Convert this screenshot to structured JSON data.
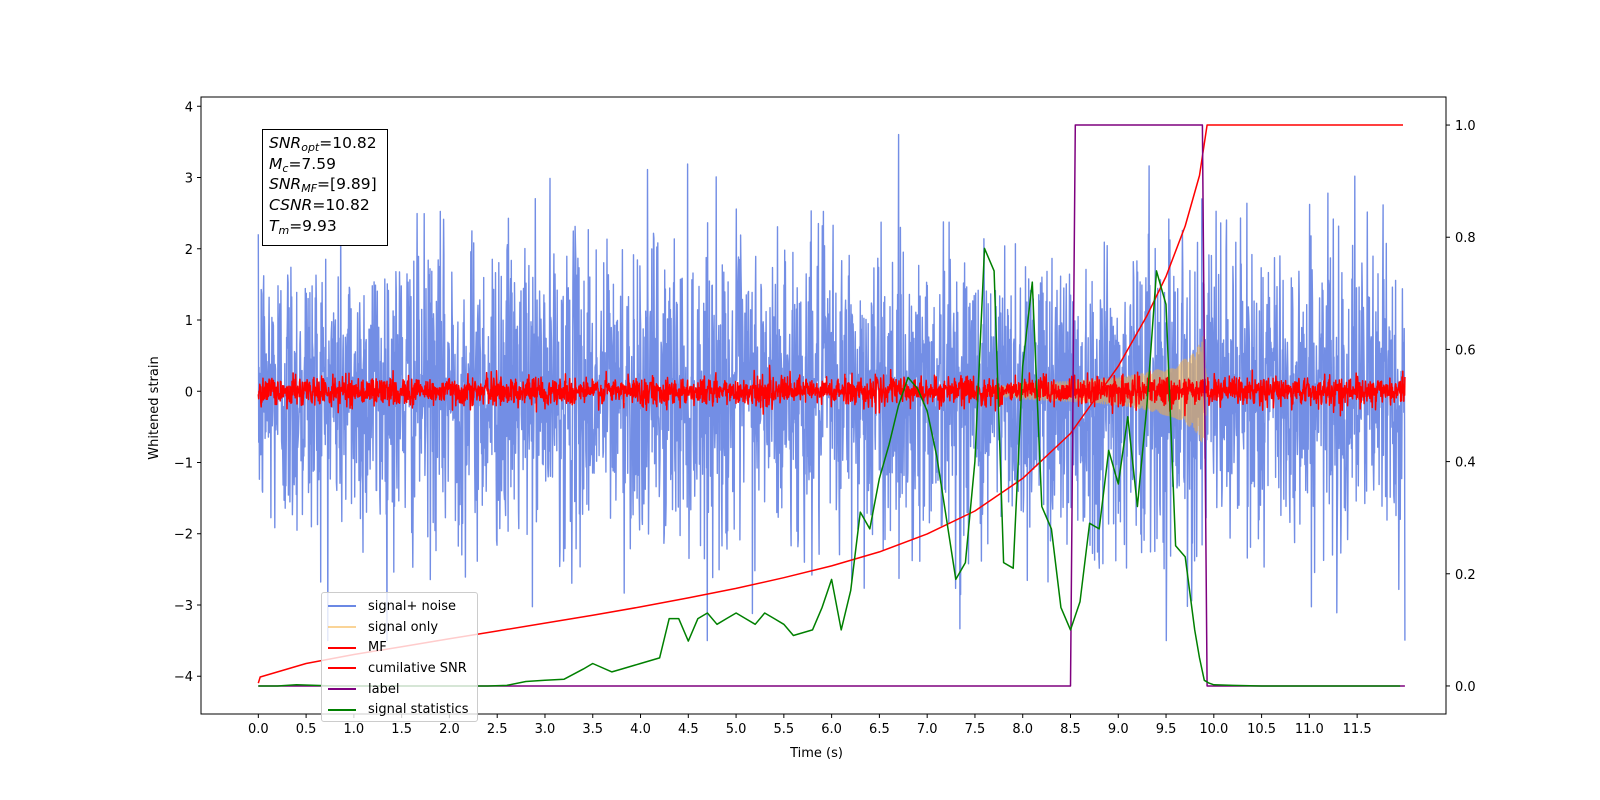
{
  "chart_data": {
    "type": "line",
    "title": "",
    "xlabel": "Time (s)",
    "ylabel": "Whitened strain",
    "y2label": "",
    "xlim": [
      -0.6,
      12.43
    ],
    "ylim": [
      -4.53,
      4.13
    ],
    "y2lim": [
      -0.05,
      1.05
    ],
    "xticks": [
      "0.0",
      "0.5",
      "1.0",
      "1.5",
      "2.0",
      "2.5",
      "3.0",
      "3.5",
      "4.0",
      "4.5",
      "5.0",
      "5.5",
      "6.0",
      "6.5",
      "7.0",
      "7.5",
      "8.0",
      "8.5",
      "9.0",
      "9.5",
      "10.0",
      "10.5",
      "11.0",
      "11.5"
    ],
    "yticks": [
      "4",
      "3",
      "2",
      "1",
      "0",
      "−1",
      "−2",
      "−3",
      "−4"
    ],
    "y2ticks": [
      "1.0",
      "0.8",
      "0.6",
      "0.4",
      "0.2",
      "0.0"
    ],
    "grid": false,
    "legend_position": "lower-left",
    "annotation": {
      "lines": [
        {
          "var": "SNR",
          "sub": "opt",
          "value": "=10.82"
        },
        {
          "var": "M",
          "sub": "c",
          "value": "=7.59"
        },
        {
          "var": "SNR",
          "sub": "MF",
          "value": "=[9.89]"
        },
        {
          "var": "CSNR",
          "sub": "",
          "value": "=10.82"
        },
        {
          "var": "T",
          "sub": "m",
          "value": "=9.93"
        }
      ]
    },
    "series": [
      {
        "name": "signal+ noise",
        "color": "#6b88e4",
        "axis": "left",
        "kind": "noise",
        "note_stats": {
          "mean": 0.0,
          "std": 1.0,
          "x_range": [
            0.0,
            12.0
          ]
        }
      },
      {
        "name": "signal only",
        "color": "#f5b042",
        "axis": "left",
        "kind": "chirp",
        "envelope": {
          "x": [
            7.6,
            8.0,
            8.5,
            9.0,
            9.3,
            9.6,
            9.8,
            9.9,
            9.93
          ],
          "y": [
            0.05,
            0.12,
            0.15,
            0.2,
            0.27,
            0.38,
            0.55,
            0.8,
            0.0
          ]
        }
      },
      {
        "name": "MF",
        "color": "#ff0000",
        "axis": "left",
        "kind": "noise",
        "note_stats": {
          "mean": 0.0,
          "std": 0.1,
          "x_range": [
            0.0,
            12.0
          ]
        }
      },
      {
        "name": "cumilative SNR",
        "color": "#ff0000",
        "axis": "right",
        "x": [
          0.0,
          0.02,
          0.5,
          1.0,
          1.5,
          2.0,
          2.5,
          3.0,
          3.5,
          4.0,
          4.5,
          5.0,
          5.5,
          6.0,
          6.5,
          7.0,
          7.5,
          8.0,
          8.5,
          9.0,
          9.3,
          9.5,
          9.7,
          9.85,
          9.93,
          9.96,
          10.5,
          11.0,
          11.5,
          11.98
        ],
        "y": [
          0.005,
          0.016,
          0.04,
          0.056,
          0.07,
          0.084,
          0.098,
          0.112,
          0.126,
          0.141,
          0.157,
          0.174,
          0.193,
          0.214,
          0.239,
          0.271,
          0.312,
          0.37,
          0.45,
          0.57,
          0.66,
          0.73,
          0.82,
          0.91,
          1.0,
          1.0,
          1.0,
          1.0,
          1.0,
          1.0
        ]
      },
      {
        "name": "label",
        "color": "#7f007f",
        "axis": "right",
        "x": [
          0.0,
          8.5,
          8.55,
          9.88,
          9.93,
          12.0
        ],
        "y": [
          0.0,
          0.0,
          1.0,
          1.0,
          0.0,
          0.0
        ]
      },
      {
        "name": "signal statistics",
        "color": "#008000",
        "axis": "right",
        "x": [
          0.0,
          0.2,
          0.4,
          0.6,
          0.8,
          1.0,
          1.2,
          1.4,
          1.6,
          1.8,
          2.0,
          2.2,
          2.4,
          2.6,
          2.8,
          3.0,
          3.2,
          3.4,
          3.5,
          3.7,
          3.8,
          4.0,
          4.2,
          4.3,
          4.4,
          4.5,
          4.6,
          4.7,
          4.8,
          4.9,
          5.0,
          5.1,
          5.2,
          5.3,
          5.4,
          5.5,
          5.6,
          5.8,
          5.9,
          6.0,
          6.1,
          6.2,
          6.3,
          6.4,
          6.5,
          6.6,
          6.7,
          6.8,
          6.9,
          7.0,
          7.1,
          7.2,
          7.3,
          7.4,
          7.5,
          7.6,
          7.7,
          7.8,
          7.9,
          8.0,
          8.1,
          8.2,
          8.3,
          8.4,
          8.5,
          8.6,
          8.7,
          8.8,
          8.9,
          9.0,
          9.1,
          9.2,
          9.3,
          9.4,
          9.5,
          9.6,
          9.7,
          9.8,
          9.85,
          9.9,
          9.95,
          10.0,
          10.2,
          10.5,
          11.0,
          11.5,
          11.95
        ],
        "y": [
          0.0,
          0.0,
          0.002,
          0.001,
          0.0,
          0.0,
          0.0,
          0.0,
          0.0,
          0.0,
          0.0,
          0.0,
          0.0,
          0.001,
          0.008,
          0.01,
          0.012,
          0.03,
          0.04,
          0.025,
          0.03,
          0.04,
          0.05,
          0.12,
          0.12,
          0.08,
          0.12,
          0.13,
          0.11,
          0.12,
          0.13,
          0.12,
          0.11,
          0.13,
          0.12,
          0.11,
          0.09,
          0.1,
          0.14,
          0.19,
          0.1,
          0.17,
          0.31,
          0.28,
          0.37,
          0.43,
          0.5,
          0.55,
          0.53,
          0.49,
          0.41,
          0.3,
          0.19,
          0.22,
          0.4,
          0.78,
          0.74,
          0.22,
          0.21,
          0.57,
          0.72,
          0.32,
          0.28,
          0.14,
          0.1,
          0.15,
          0.29,
          0.28,
          0.42,
          0.36,
          0.48,
          0.32,
          0.5,
          0.74,
          0.68,
          0.25,
          0.23,
          0.1,
          0.05,
          0.01,
          0.005,
          0.002,
          0.001,
          0.0,
          0.0,
          0.0,
          0.0
        ]
      }
    ]
  }
}
